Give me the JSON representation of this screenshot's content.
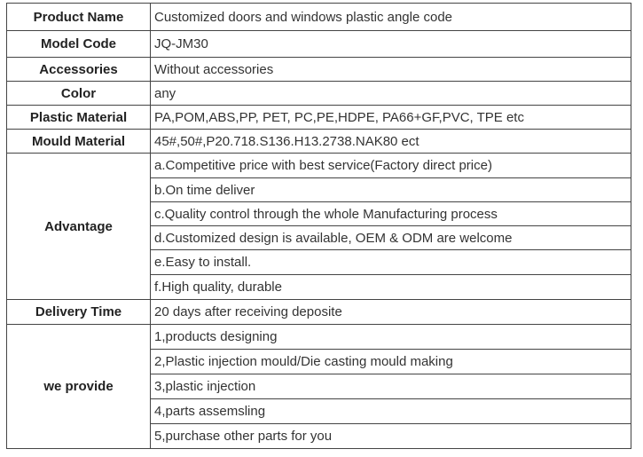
{
  "rows": [
    {
      "label": "Product Name",
      "value": "Customized doors and windows plastic angle code"
    },
    {
      "label": "Model Code",
      "value": "JQ-JM30"
    },
    {
      "label": "Accessories",
      "value": "Without accessories"
    },
    {
      "label": "Color",
      "value": "any"
    },
    {
      "label": "Plastic Material",
      "value": "PA,POM,ABS,PP, PET, PC,PE,HDPE, PA66+GF,PVC, TPE etc"
    },
    {
      "label": "Mould Material",
      "value": "45#,50#,P20.718.S136.H13.2738.NAK80 ect"
    }
  ],
  "advantage": {
    "label": "Advantage",
    "items": [
      "a.Competitive price with best service(Factory direct price)",
      "b.On time deliver",
      "c.Quality control through the whole Manufacturing process",
      "d.Customized design is available, OEM & ODM are welcome",
      "e.Easy to install.",
      "f.High quality, durable"
    ]
  },
  "delivery": {
    "label": "Delivery Time",
    "value": "20 days after receiving deposite"
  },
  "provide": {
    "label": "we provide",
    "items": [
      "1,products designing",
      "2,Plastic injection mould/Die casting mould making",
      "3,plastic injection",
      "4,parts assemsling",
      "5,purchase other parts for you"
    ]
  }
}
